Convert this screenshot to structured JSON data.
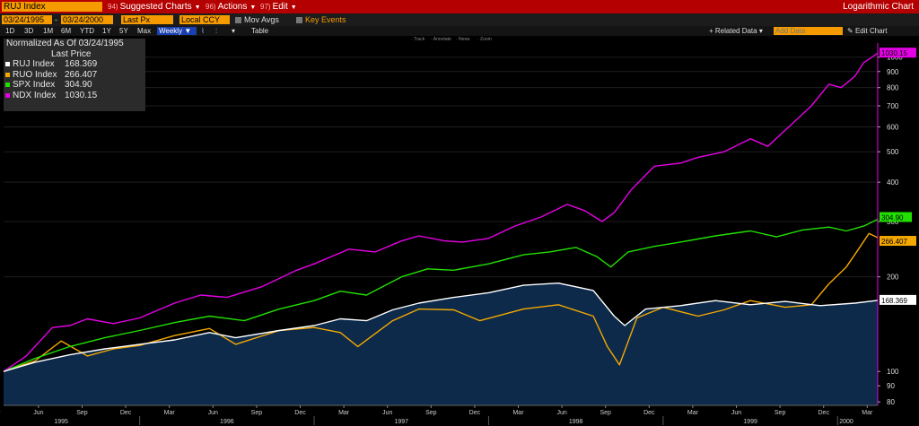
{
  "toolbar": {
    "ticker": "RUJ Index",
    "menus": [
      {
        "num": "94)",
        "label": "Suggested Charts"
      },
      {
        "num": "96)",
        "label": "Actions"
      },
      {
        "num": "97)",
        "label": "Edit"
      }
    ],
    "chart_title": "Logarithmic Chart"
  },
  "settings": {
    "start_date": "03/24/1995",
    "end_date": "03/24/2000",
    "price_field": "Last Px",
    "currency": "Local CCY",
    "mov_avgs": "Mov Avgs",
    "key_events": "Key Events",
    "ranges": [
      "1D",
      "3D",
      "1M",
      "6M",
      "YTD",
      "1Y",
      "5Y",
      "Max"
    ],
    "frequency": "Weekly",
    "table_label": "Table",
    "related_data": "+ Related Data",
    "add_data_placeholder": "Add Data",
    "edit_chart": "Edit Chart",
    "mini_tools": [
      "Track",
      "Annotate",
      "News",
      "Zoom"
    ]
  },
  "legend": {
    "title": "Normalized As Of 03/24/1995",
    "subtitle": "Last Price",
    "items": [
      {
        "name": "RUJ Index",
        "value": "168.369"
      },
      {
        "name": "RUO Index",
        "value": "266.407"
      },
      {
        "name": "SPX Index",
        "value": "304.90"
      },
      {
        "name": "NDX Index",
        "value": "1030.15"
      }
    ]
  },
  "chart_data": {
    "type": "line",
    "y_scale": "log",
    "ylim": [
      78,
      1080
    ],
    "y_ticks": [
      80,
      90,
      100,
      200,
      300,
      400,
      500,
      600,
      700,
      800,
      900,
      1000
    ],
    "x_range": [
      1995.22,
      2000.23
    ],
    "x_ticks": [
      {
        "label": "Mar",
        "t": 1995.17
      },
      {
        "label": "Jun",
        "t": 1995.42
      },
      {
        "label": "Sep",
        "t": 1995.67
      },
      {
        "label": "Dec",
        "t": 1995.92
      },
      {
        "label": "Mar",
        "t": 1996.17
      },
      {
        "label": "Jun",
        "t": 1996.42
      },
      {
        "label": "Sep",
        "t": 1996.67
      },
      {
        "label": "Dec",
        "t": 1996.92
      },
      {
        "label": "Mar",
        "t": 1997.17
      },
      {
        "label": "Jun",
        "t": 1997.42
      },
      {
        "label": "Sep",
        "t": 1997.67
      },
      {
        "label": "Dec",
        "t": 1997.92
      },
      {
        "label": "Mar",
        "t": 1998.17
      },
      {
        "label": "Jun",
        "t": 1998.42
      },
      {
        "label": "Sep",
        "t": 1998.67
      },
      {
        "label": "Dec",
        "t": 1998.92
      },
      {
        "label": "Mar",
        "t": 1999.17
      },
      {
        "label": "Jun",
        "t": 1999.42
      },
      {
        "label": "Sep",
        "t": 1999.67
      },
      {
        "label": "Dec",
        "t": 1999.92
      },
      {
        "label": "Mar",
        "t": 2000.17
      }
    ],
    "years": [
      {
        "label": "1995",
        "t": 1995.55
      },
      {
        "label": "1996",
        "t": 1996.5
      },
      {
        "label": "1997",
        "t": 1997.5
      },
      {
        "label": "1998",
        "t": 1998.5
      },
      {
        "label": "1999",
        "t": 1999.5
      },
      {
        "label": "2000",
        "t": 2000.05
      }
    ],
    "series": [
      {
        "name": "RUJ Index",
        "color": "#ffffff",
        "area": true,
        "last_label": "168.369",
        "t": [
          1995.22,
          1995.4,
          1995.6,
          1995.8,
          1996.0,
          1996.2,
          1996.4,
          1996.55,
          1996.8,
          1997.0,
          1997.15,
          1997.3,
          1997.45,
          1997.6,
          1997.8,
          1998.0,
          1998.2,
          1998.4,
          1998.6,
          1998.72,
          1998.78,
          1998.9,
          1999.1,
          1999.3,
          1999.5,
          1999.7,
          1999.9,
          2000.1,
          2000.23
        ],
        "v": [
          100,
          107,
          113,
          118,
          122,
          126,
          133,
          128,
          135,
          140,
          147,
          145,
          157,
          165,
          172,
          178,
          188,
          191,
          181,
          150,
          140,
          158,
          162,
          168,
          163,
          167,
          162,
          165,
          168.369
        ]
      },
      {
        "name": "RUO Index",
        "color": "#f5a800",
        "last_label": "266.407",
        "t": [
          1995.22,
          1995.4,
          1995.55,
          1995.7,
          1995.85,
          1996.0,
          1996.2,
          1996.4,
          1996.55,
          1996.8,
          1997.0,
          1997.15,
          1997.25,
          1997.45,
          1997.6,
          1997.8,
          1997.95,
          1998.2,
          1998.4,
          1998.6,
          1998.68,
          1998.75,
          1998.85,
          1999.0,
          1999.2,
          1999.35,
          1999.5,
          1999.7,
          1999.85,
          1999.95,
          2000.05,
          2000.12,
          2000.18,
          2000.23
        ],
        "v": [
          100,
          108,
          125,
          112,
          118,
          121,
          130,
          137,
          122,
          135,
          138,
          133,
          120,
          145,
          158,
          157,
          145,
          158,
          163,
          150,
          120,
          105,
          148,
          160,
          150,
          157,
          168,
          160,
          163,
          190,
          215,
          245,
          275,
          266.407
        ]
      },
      {
        "name": "SPX Index",
        "color": "#22e000",
        "last_label": "304.90",
        "t": [
          1995.22,
          1995.4,
          1995.6,
          1995.8,
          1996.0,
          1996.2,
          1996.4,
          1996.6,
          1996.8,
          1997.0,
          1997.15,
          1997.3,
          1997.5,
          1997.65,
          1997.8,
          1998.0,
          1998.2,
          1998.35,
          1998.5,
          1998.62,
          1998.7,
          1998.8,
          1998.95,
          1999.1,
          1999.3,
          1999.5,
          1999.65,
          1999.8,
          1999.95,
          2000.05,
          2000.15,
          2000.23
        ],
        "v": [
          100,
          110,
          120,
          128,
          135,
          143,
          150,
          145,
          158,
          168,
          180,
          175,
          200,
          212,
          210,
          220,
          235,
          240,
          248,
          232,
          215,
          240,
          250,
          258,
          270,
          280,
          268,
          282,
          288,
          280,
          290,
          304.9
        ]
      },
      {
        "name": "NDX Index",
        "color": "#e600e6",
        "last_label": "1030.15",
        "t": [
          1995.22,
          1995.35,
          1995.5,
          1995.6,
          1995.7,
          1995.85,
          1996.0,
          1996.2,
          1996.35,
          1996.5,
          1996.7,
          1996.9,
          1997.0,
          1997.2,
          1997.35,
          1997.5,
          1997.6,
          1997.75,
          1997.85,
          1998.0,
          1998.15,
          1998.3,
          1998.45,
          1998.55,
          1998.65,
          1998.72,
          1998.82,
          1998.95,
          1999.1,
          1999.2,
          1999.35,
          1999.5,
          1999.6,
          1999.72,
          1999.85,
          1999.95,
          2000.02,
          2000.1,
          2000.15,
          2000.23
        ],
        "v": [
          100,
          112,
          138,
          140,
          147,
          142,
          148,
          165,
          175,
          172,
          186,
          210,
          220,
          245,
          240,
          260,
          270,
          260,
          258,
          265,
          290,
          310,
          340,
          325,
          300,
          320,
          380,
          450,
          460,
          480,
          500,
          550,
          520,
          600,
          700,
          820,
          800,
          870,
          960,
          1030.15
        ]
      }
    ]
  }
}
